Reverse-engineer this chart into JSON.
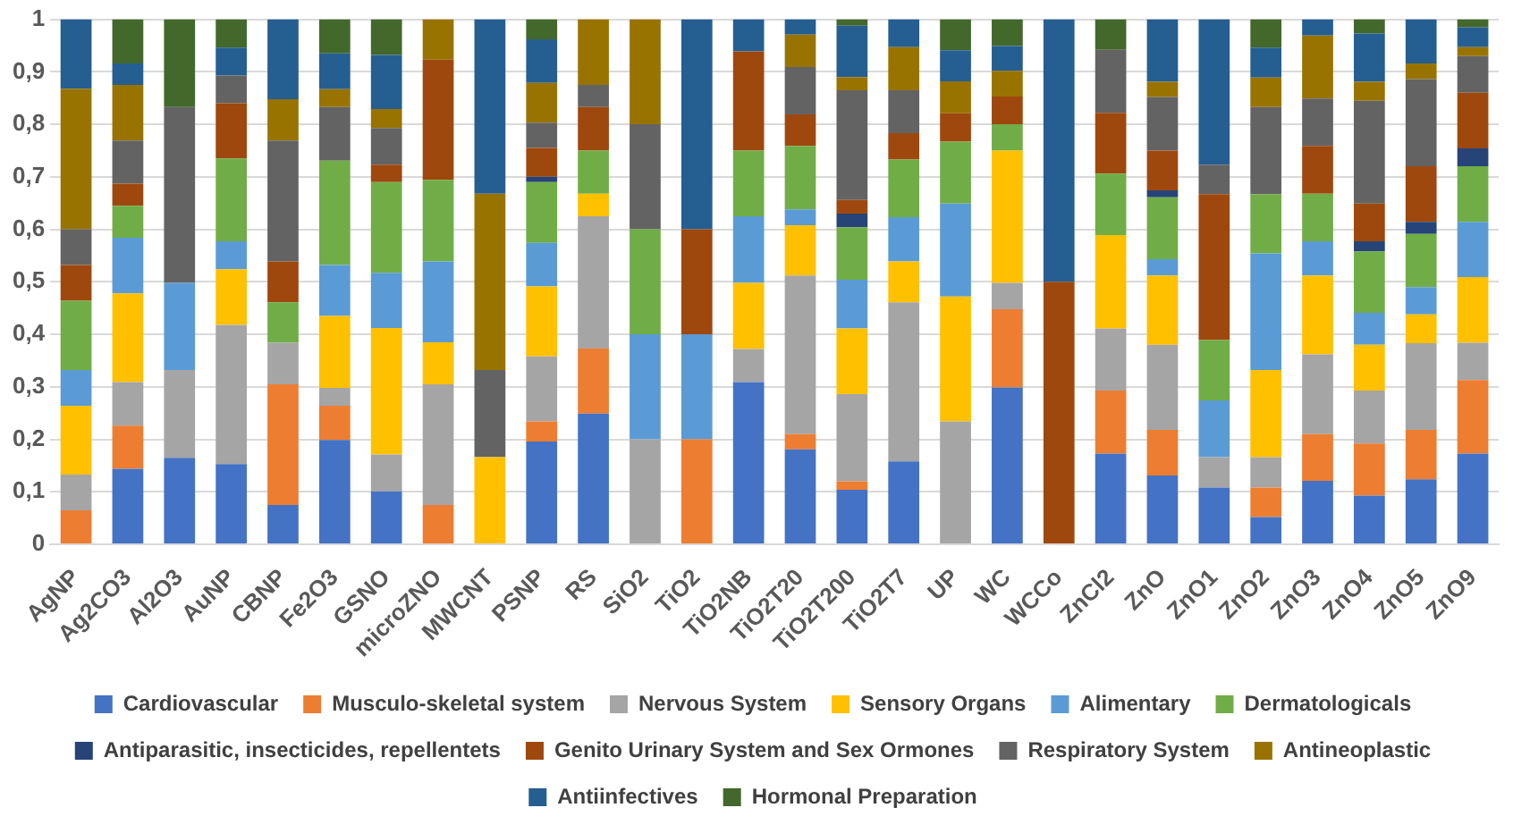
{
  "chart_data": {
    "type": "bar",
    "stacked": true,
    "categories": [
      "AgNP",
      "Ag2CO3",
      "Al2O3",
      "AuNP",
      "CBNP",
      "Fe2O3",
      "GSNO",
      "microZNO",
      "MWCNT",
      "PSNP",
      "RS",
      "SiO2",
      "TiO2",
      "TiO2NB",
      "TiO2T20",
      "TiO2T200",
      "TiO2T7",
      "UP",
      "WC",
      "WCCo",
      "ZnCl2",
      "ZnO",
      "ZnO1",
      "ZnO2",
      "ZnO3",
      "ZnO4",
      "ZnO5",
      "ZnO9"
    ],
    "ylim": [
      0,
      1
    ],
    "yticks": [
      0,
      {
        "value": 0.1,
        "label": "0,1"
      },
      {
        "value": 0.2,
        "label": "0,2"
      },
      {
        "value": 0.3,
        "label": "0,3"
      },
      {
        "value": 0.4,
        "label": "0,4"
      },
      {
        "value": 0.5,
        "label": "0,5"
      },
      {
        "value": 0.6,
        "label": "0,6"
      },
      {
        "value": 0.7,
        "label": "0,7"
      },
      {
        "value": 0.8,
        "label": "0,8"
      },
      {
        "value": 0.9,
        "label": "0,9"
      },
      1
    ],
    "grid": "y",
    "legend": "bottom",
    "series": [
      {
        "name": "Cardiovascular",
        "color": "#4472c4",
        "values": [
          null,
          0.144,
          0.165,
          0.153,
          0.075,
          0.199,
          0.101,
          null,
          null,
          0.196,
          0.249,
          null,
          null,
          0.309,
          0.181,
          0.104,
          0.158,
          null,
          0.299,
          null,
          0.173,
          0.131,
          0.108,
          0.052,
          0.121,
          0.093,
          0.124,
          0.173
        ]
      },
      {
        "name": "Musculo-skeletal system",
        "color": "#ed7d31",
        "values": [
          0.065,
          0.082,
          null,
          null,
          0.23,
          0.065,
          null,
          0.075,
          null,
          0.038,
          0.124,
          null,
          0.2,
          null,
          0.029,
          0.016,
          null,
          null,
          0.149,
          null,
          0.12,
          0.087,
          null,
          0.056,
          0.089,
          0.099,
          0.094,
          0.14
        ]
      },
      {
        "name": "Nervous System",
        "color": "#a5a5a5",
        "values": [
          0.068,
          0.083,
          0.167,
          0.265,
          0.079,
          0.034,
          0.07,
          0.23,
          null,
          0.124,
          0.252,
          0.2,
          null,
          0.063,
          0.302,
          0.166,
          0.303,
          0.234,
          0.05,
          null,
          0.118,
          0.162,
          0.058,
          0.058,
          0.152,
          0.101,
          0.165,
          0.071
        ]
      },
      {
        "name": "Sensory Organs",
        "color": "#ffc000",
        "values": [
          0.131,
          0.169,
          null,
          0.106,
          null,
          0.137,
          0.241,
          0.08,
          0.166,
          0.133,
          0.043,
          null,
          null,
          0.126,
          0.096,
          0.125,
          0.078,
          0.238,
          0.252,
          null,
          0.178,
          0.132,
          null,
          0.166,
          0.15,
          0.087,
          0.055,
          0.125
        ]
      },
      {
        "name": "Alimentary",
        "color": "#5b9bd5",
        "values": [
          0.068,
          0.106,
          0.166,
          0.053,
          null,
          0.097,
          0.105,
          0.154,
          null,
          0.083,
          null,
          0.2,
          0.2,
          0.127,
          0.03,
          0.093,
          0.084,
          0.177,
          null,
          null,
          null,
          0.031,
          0.108,
          0.222,
          0.065,
          0.061,
          0.052,
          0.105
        ]
      },
      {
        "name": "Dermatologicals",
        "color": "#70ad47",
        "values": [
          0.132,
          0.061,
          null,
          0.158,
          0.077,
          0.199,
          0.173,
          0.155,
          null,
          0.116,
          0.082,
          0.2,
          null,
          0.125,
          0.121,
          0.1,
          0.11,
          0.118,
          0.05,
          null,
          0.117,
          0.118,
          0.115,
          0.113,
          0.091,
          0.117,
          0.101,
          0.106
        ]
      },
      {
        "name": "Antiparasitic, insecticides, repellentets",
        "color": "#264478",
        "values": [
          null,
          null,
          null,
          null,
          null,
          null,
          null,
          null,
          null,
          0.01,
          null,
          null,
          null,
          null,
          null,
          0.026,
          null,
          null,
          null,
          null,
          null,
          0.013,
          null,
          null,
          null,
          0.019,
          0.023,
          0.034
        ]
      },
      {
        "name": "Genito Urinary System and Sex Ormones",
        "color": "#9e480e",
        "values": [
          0.068,
          0.042,
          null,
          0.105,
          0.078,
          null,
          0.033,
          0.229,
          null,
          0.055,
          0.083,
          null,
          0.2,
          0.189,
          0.06,
          0.026,
          0.05,
          0.054,
          0.053,
          0.5,
          0.116,
          0.076,
          0.278,
          null,
          0.091,
          0.072,
          0.106,
          0.106
        ]
      },
      {
        "name": "Respiratory System",
        "color": "#636363",
        "values": [
          0.068,
          0.082,
          0.335,
          0.053,
          0.23,
          0.102,
          0.07,
          null,
          0.166,
          0.048,
          0.042,
          0.2,
          null,
          null,
          0.09,
          0.209,
          0.082,
          null,
          null,
          null,
          0.12,
          0.102,
          0.056,
          0.166,
          0.09,
          0.196,
          0.166,
          0.07
        ]
      },
      {
        "name": "Antineoplastic",
        "color": "#997300",
        "values": [
          0.268,
          0.106,
          null,
          null,
          0.079,
          0.034,
          0.036,
          0.077,
          0.336,
          0.076,
          0.125,
          0.2,
          null,
          null,
          0.062,
          0.025,
          0.082,
          0.061,
          0.049,
          null,
          null,
          0.029,
          null,
          0.056,
          0.12,
          0.036,
          0.03,
          0.017
        ]
      },
      {
        "name": "Antiinfectives",
        "color": "#255e91",
        "values": [
          0.132,
          0.041,
          null,
          0.053,
          0.152,
          0.068,
          0.103,
          null,
          0.332,
          0.083,
          null,
          null,
          0.4,
          0.061,
          0.029,
          0.098,
          0.053,
          0.059,
          0.047,
          0.5,
          null,
          0.119,
          0.277,
          0.057,
          0.031,
          0.092,
          0.084,
          0.038
        ]
      },
      {
        "name": "Hormonal Preparation",
        "color": "#43682b",
        "values": [
          null,
          0.084,
          0.167,
          0.054,
          null,
          0.065,
          0.068,
          null,
          null,
          0.038,
          null,
          null,
          null,
          null,
          null,
          0.012,
          null,
          0.059,
          0.051,
          null,
          0.058,
          null,
          null,
          0.054,
          null,
          0.027,
          null,
          0.015
        ]
      }
    ]
  }
}
